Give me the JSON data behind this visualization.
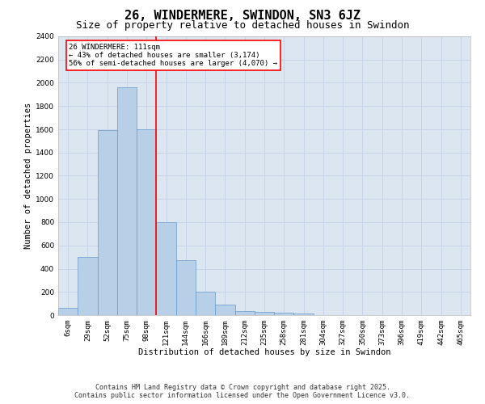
{
  "title": "26, WINDERMERE, SWINDON, SN3 6JZ",
  "subtitle": "Size of property relative to detached houses in Swindon",
  "xlabel": "Distribution of detached houses by size in Swindon",
  "ylabel": "Number of detached properties",
  "footer_line1": "Contains HM Land Registry data © Crown copyright and database right 2025.",
  "footer_line2": "Contains public sector information licensed under the Open Government Licence v3.0.",
  "categories": [
    "6sqm",
    "29sqm",
    "52sqm",
    "75sqm",
    "98sqm",
    "121sqm",
    "144sqm",
    "166sqm",
    "189sqm",
    "212sqm",
    "235sqm",
    "258sqm",
    "281sqm",
    "304sqm",
    "327sqm",
    "350sqm",
    "373sqm",
    "396sqm",
    "419sqm",
    "442sqm",
    "465sqm"
  ],
  "values": [
    60,
    500,
    1590,
    1960,
    1600,
    800,
    470,
    200,
    90,
    35,
    30,
    20,
    15,
    0,
    0,
    0,
    0,
    0,
    0,
    0,
    0
  ],
  "bar_color": "#b8cfe8",
  "bar_edge_color": "#6699cc",
  "vline_x": 4.5,
  "vline_color": "red",
  "annotation_line1": "26 WINDERMERE: 111sqm",
  "annotation_line2": "← 43% of detached houses are smaller (3,174)",
  "annotation_line3": "56% of semi-detached houses are larger (4,070) →",
  "ylim": [
    0,
    2400
  ],
  "yticks": [
    0,
    200,
    400,
    600,
    800,
    1000,
    1200,
    1400,
    1600,
    1800,
    2000,
    2200,
    2400
  ],
  "grid_color": "#c8d4e8",
  "background_color": "#dce6f0",
  "title_fontsize": 11,
  "subtitle_fontsize": 9,
  "axis_label_fontsize": 7.5,
  "tick_fontsize": 6.5,
  "annotation_fontsize": 6.5,
  "footer_fontsize": 6
}
